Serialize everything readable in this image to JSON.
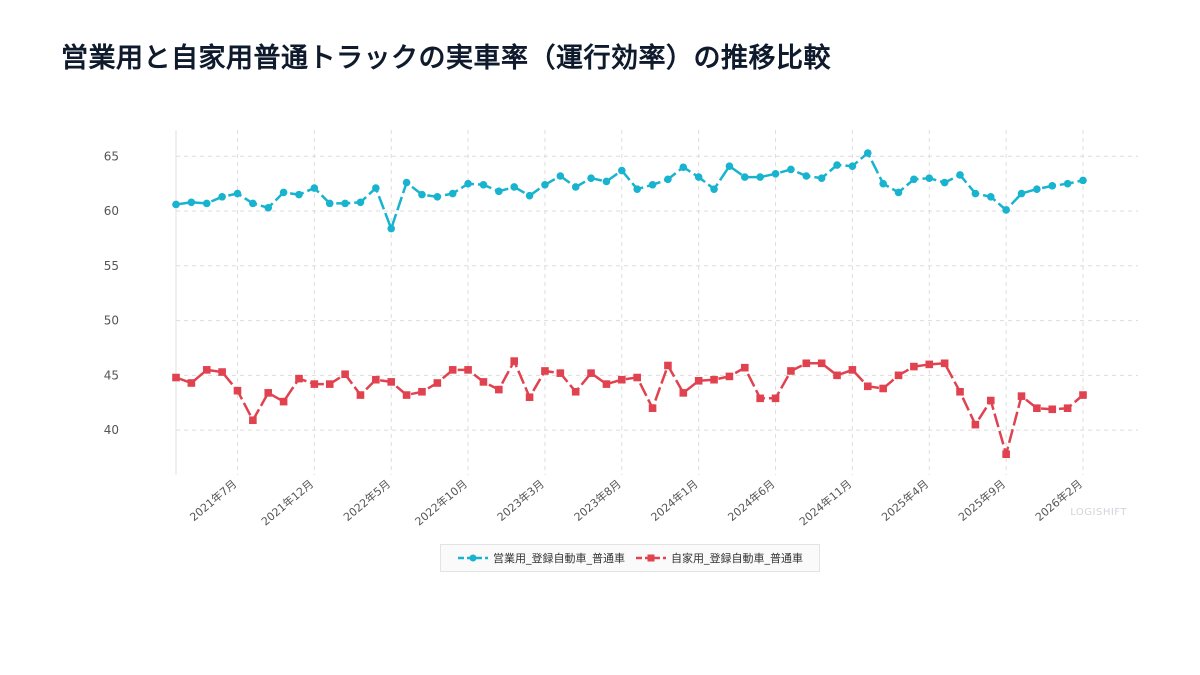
{
  "page": {
    "title": "営業用と自家用普通トラックの実車率（運行効率）の推移比較",
    "watermark": "LOGISHIFT"
  },
  "chart_data": {
    "type": "line",
    "title": "営業用と自家用普通トラックの実車率（運行効率）の推移比較",
    "xlabel": "",
    "ylabel": "",
    "ylim": [
      35.9,
      67.4
    ],
    "y_ticks": [
      40,
      45,
      50,
      55,
      60,
      65
    ],
    "grid": true,
    "legend_position": "bottom",
    "x": [
      "2021-03",
      "2021-04",
      "2021-05",
      "2021-06",
      "2021-07",
      "2021-08",
      "2021-09",
      "2021-10",
      "2021-11",
      "2021-12",
      "2022-01",
      "2022-02",
      "2022-03",
      "2022-04",
      "2022-05",
      "2022-06",
      "2022-07",
      "2022-08",
      "2022-09",
      "2022-10",
      "2022-11",
      "2022-12",
      "2023-01",
      "2023-02",
      "2023-03",
      "2023-04",
      "2023-05",
      "2023-06",
      "2023-07",
      "2023-08",
      "2023-09",
      "2023-10",
      "2023-11",
      "2023-12",
      "2024-01",
      "2024-02",
      "2024-03",
      "2024-04",
      "2024-05",
      "2024-06",
      "2024-07",
      "2024-08",
      "2024-09",
      "2024-10",
      "2024-11",
      "2024-12",
      "2025-01",
      "2025-02",
      "2025-03",
      "2025-04",
      "2025-05",
      "2025-06",
      "2025-07",
      "2025-08",
      "2025-09",
      "2025-10",
      "2025-11",
      "2025-12",
      "2026-01",
      "2026-02"
    ],
    "x_tick_labels": [
      {
        "x": "2021-07",
        "label": "2021年7月"
      },
      {
        "x": "2021-12",
        "label": "2021年12月"
      },
      {
        "x": "2022-05",
        "label": "2022年5月"
      },
      {
        "x": "2022-10",
        "label": "2022年10月"
      },
      {
        "x": "2023-03",
        "label": "2023年3月"
      },
      {
        "x": "2023-08",
        "label": "2023年8月"
      },
      {
        "x": "2024-01",
        "label": "2024年1月"
      },
      {
        "x": "2024-06",
        "label": "2024年6月"
      },
      {
        "x": "2024-11",
        "label": "2024年11月"
      },
      {
        "x": "2025-04",
        "label": "2025年4月"
      },
      {
        "x": "2025-09",
        "label": "2025年9月"
      },
      {
        "x": "2026-02",
        "label": "2026年2月"
      }
    ],
    "series": [
      {
        "name": "営業用_登録自動車_普通車",
        "color": "#17b3cf",
        "marker": "circle",
        "values": [
          60.6,
          60.8,
          60.7,
          61.3,
          61.6,
          60.7,
          60.3,
          61.7,
          61.5,
          62.1,
          60.7,
          60.7,
          60.8,
          62.1,
          58.4,
          62.6,
          61.5,
          61.3,
          61.6,
          62.5,
          62.4,
          61.8,
          62.2,
          61.4,
          62.4,
          63.2,
          62.2,
          63.0,
          62.7,
          63.7,
          62.0,
          62.4,
          62.9,
          64.0,
          63.1,
          62.0,
          64.1,
          63.1,
          63.1,
          63.4,
          63.8,
          63.2,
          63.0,
          64.2,
          64.1,
          65.3,
          62.5,
          61.7,
          62.9,
          63.0,
          62.6,
          63.3,
          61.6,
          61.3,
          60.1,
          61.6,
          62.0,
          62.3,
          62.5,
          62.8
        ]
      },
      {
        "name": "自家用_登録自動車_普通車",
        "color": "#e0424f",
        "marker": "square",
        "values": [
          44.8,
          44.3,
          45.5,
          45.3,
          43.6,
          40.9,
          43.4,
          42.6,
          44.7,
          44.2,
          44.2,
          45.1,
          43.2,
          44.6,
          44.4,
          43.2,
          43.5,
          44.3,
          45.5,
          45.5,
          44.4,
          43.7,
          46.3,
          43.0,
          45.4,
          45.2,
          43.5,
          45.2,
          44.2,
          44.6,
          44.8,
          42.0,
          45.9,
          43.4,
          44.5,
          44.6,
          44.9,
          45.7,
          42.9,
          42.9,
          45.4,
          46.1,
          46.1,
          45.0,
          45.5,
          44.0,
          43.8,
          45.0,
          45.8,
          46.0,
          46.1,
          43.5,
          40.5,
          42.7,
          37.8,
          43.1,
          42.0,
          41.9,
          42.0,
          43.2
        ]
      }
    ]
  }
}
